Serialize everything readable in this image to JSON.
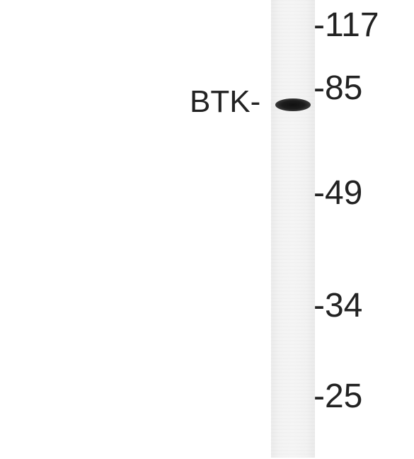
{
  "target": {
    "label": "BTK-"
  },
  "markers": [
    {
      "label": "-117",
      "kda": 117
    },
    {
      "label": "-85",
      "kda": 85
    },
    {
      "label": "-49",
      "kda": 49
    },
    {
      "label": "-34",
      "kda": 34
    },
    {
      "label": "-25",
      "kda": 25
    }
  ],
  "colors": {
    "background": "#ffffff",
    "lane": "#f3f3f3",
    "band": "#1a1a1a",
    "text": "#222222"
  }
}
